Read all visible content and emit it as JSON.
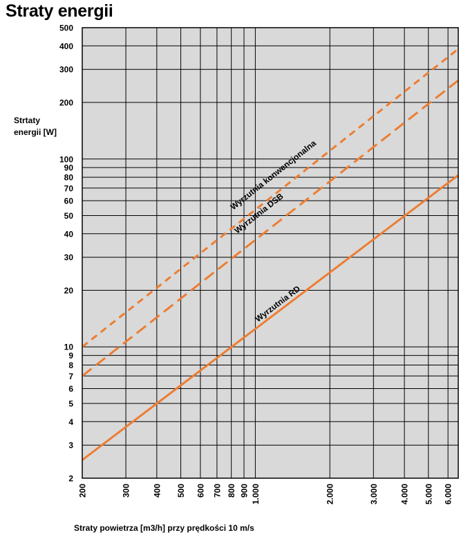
{
  "page": {
    "title": "Straty energii"
  },
  "chart_data": {
    "type": "line",
    "title": "Straty energii",
    "xlabel": "Straty powietrza [m3/h] przy prędkości 10 m/s",
    "ylabel_lines": [
      "Strtaty",
      "energii [W]"
    ],
    "x_scale": "log",
    "y_scale": "log",
    "xlim": [
      200,
      6600
    ],
    "ylim": [
      2,
      500
    ],
    "grid": true,
    "background": "#d9d9d9",
    "line_color": "#ed7d31",
    "x_ticks": [
      {
        "value": 200,
        "label": "200"
      },
      {
        "value": 300,
        "label": "300"
      },
      {
        "value": 400,
        "label": "400"
      },
      {
        "value": 500,
        "label": "500"
      },
      {
        "value": 600,
        "label": "600"
      },
      {
        "value": 700,
        "label": "700"
      },
      {
        "value": 800,
        "label": "800"
      },
      {
        "value": 900,
        "label": "900"
      },
      {
        "value": 1000,
        "label": "1.000"
      },
      {
        "value": 2000,
        "label": "2.000"
      },
      {
        "value": 3000,
        "label": "3.000"
      },
      {
        "value": 4000,
        "label": "4.000"
      },
      {
        "value": 5000,
        "label": "5.000"
      },
      {
        "value": 6000,
        "label": "6.000"
      }
    ],
    "y_ticks": [
      {
        "value": 2,
        "label": "2"
      },
      {
        "value": 3,
        "label": "3"
      },
      {
        "value": 4,
        "label": "4"
      },
      {
        "value": 5,
        "label": "5"
      },
      {
        "value": 6,
        "label": "6"
      },
      {
        "value": 7,
        "label": "7"
      },
      {
        "value": 8,
        "label": "8"
      },
      {
        "value": 9,
        "label": "9"
      },
      {
        "value": 10,
        "label": "10"
      },
      {
        "value": 20,
        "label": "20"
      },
      {
        "value": 30,
        "label": "30"
      },
      {
        "value": 40,
        "label": "40"
      },
      {
        "value": 50,
        "label": "50"
      },
      {
        "value": 60,
        "label": "60"
      },
      {
        "value": 70,
        "label": "70"
      },
      {
        "value": 80,
        "label": "80"
      },
      {
        "value": 90,
        "label": "90"
      },
      {
        "value": 100,
        "label": "100"
      },
      {
        "value": 200,
        "label": "200"
      },
      {
        "value": 300,
        "label": "300"
      },
      {
        "value": 400,
        "label": "400"
      },
      {
        "value": 500,
        "label": "500"
      }
    ],
    "series": [
      {
        "name": "Wyrzutnia konwencjonalna",
        "style": "dashed-short",
        "x": [
          200,
          6600
        ],
        "y": [
          10,
          385
        ],
        "label_at": {
          "x": 1200,
          "y": 80
        }
      },
      {
        "name": "Wyrzutnia DSB",
        "style": "dashed-long",
        "x": [
          200,
          6600
        ],
        "y": [
          7,
          262
        ],
        "label_at": {
          "x": 1050,
          "y": 50
        }
      },
      {
        "name": "Wyrzutnia RD",
        "style": "solid",
        "x": [
          200,
          6600
        ],
        "y": [
          2.5,
          82
        ],
        "label_at": {
          "x": 1250,
          "y": 16.5
        }
      }
    ]
  }
}
